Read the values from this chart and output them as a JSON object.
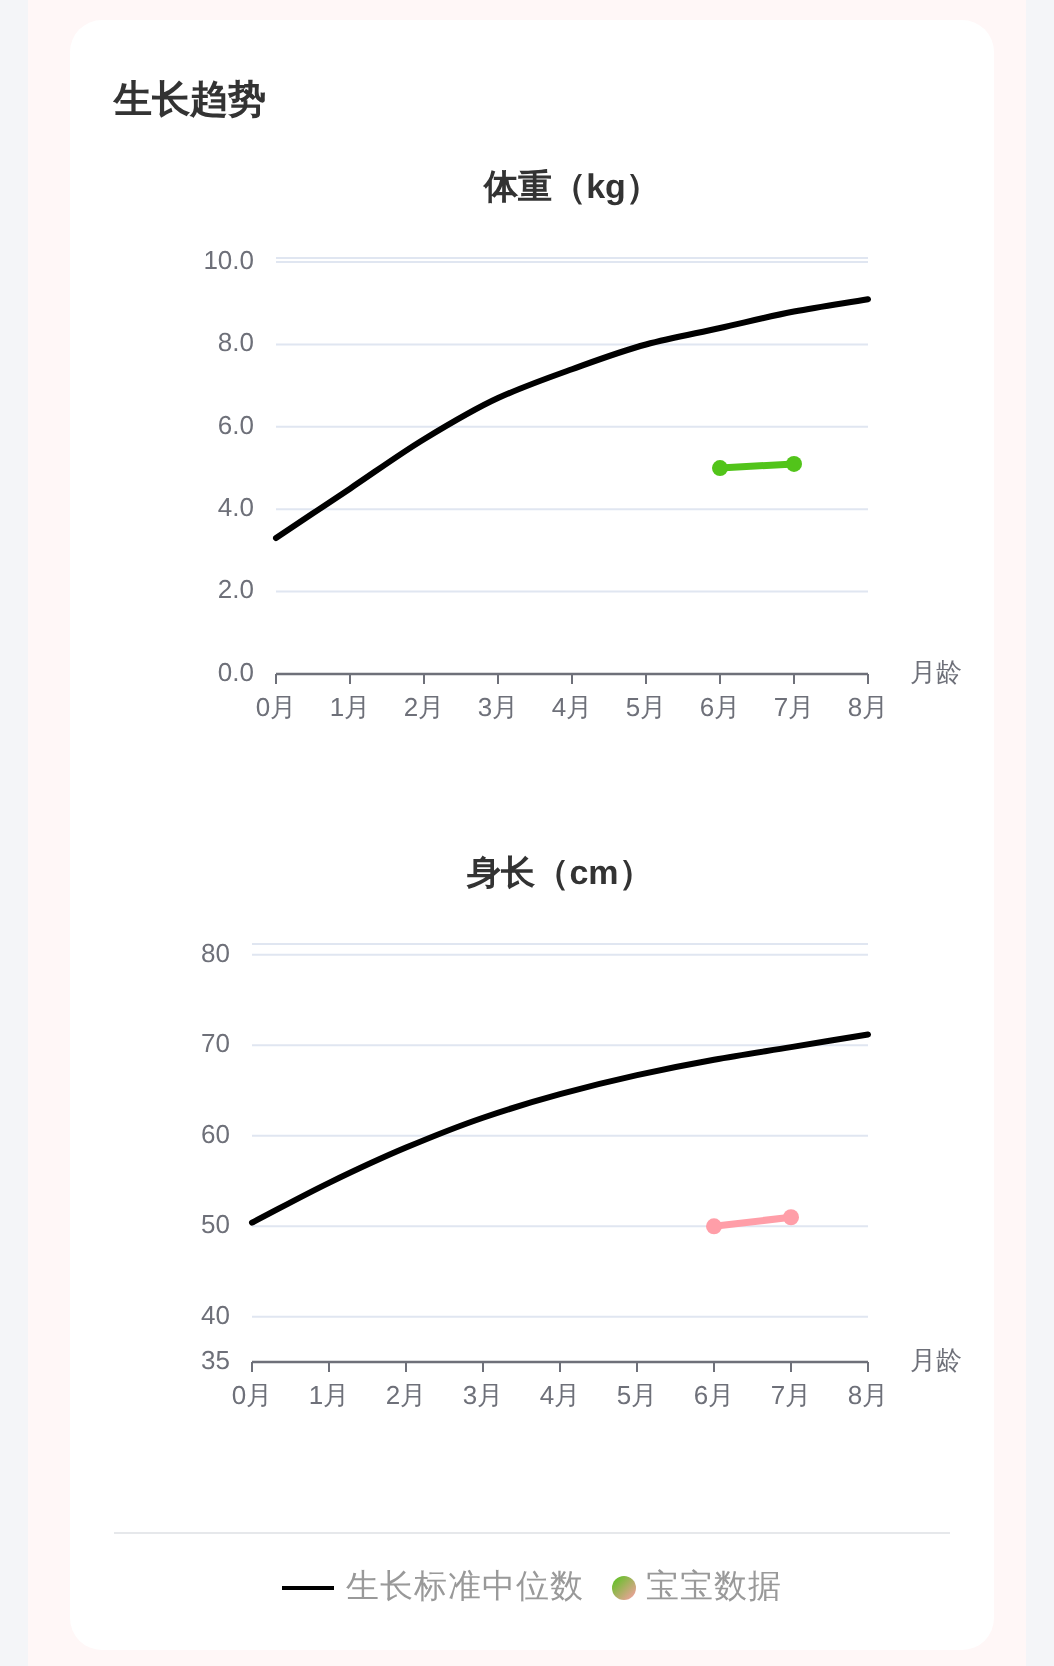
{
  "chart_data": [
    {
      "type": "line",
      "title": "生长趋势",
      "subtitle": "体重（kg）",
      "categories": [
        "0月",
        "1月",
        "2月",
        "3月",
        "4月",
        "5月",
        "6月",
        "7月",
        "8月"
      ],
      "xlabel": "月龄",
      "series": [
        {
          "color": "#000000",
          "marker": "none",
          "values": [
            3.3,
            4.5,
            5.7,
            6.7,
            7.4,
            8.0,
            8.4,
            8.8,
            9.1
          ]
        },
        {
          "color": "#52c41a",
          "marker": "circle",
          "values": [
            null,
            null,
            null,
            null,
            null,
            null,
            5.0,
            5.1,
            null
          ]
        }
      ],
      "ylim": [
        0,
        10.1
      ],
      "yticks": [
        {
          "value": 0,
          "label": "0.0"
        },
        {
          "value": 2,
          "label": "2.0"
        },
        {
          "value": 4,
          "label": "4.0"
        },
        {
          "value": 6,
          "label": "6.0"
        },
        {
          "value": 8,
          "label": "8.0"
        },
        {
          "value": 10,
          "label": "10.0"
        },
        {
          "value": 10.1,
          "label": null
        }
      ],
      "grid": "y"
    },
    {
      "type": "line",
      "title": "身长（cm）",
      "categories": [
        "0月",
        "1月",
        "2月",
        "3月",
        "4月",
        "5月",
        "6月",
        "7月",
        "8月"
      ],
      "xlabel": "月龄",
      "series": [
        {
          "name": "生长标准中位数",
          "color": "#000000",
          "marker": "none",
          "values": [
            50.4,
            54.8,
            58.7,
            62.0,
            64.6,
            66.7,
            68.4,
            69.8,
            71.2
          ]
        },
        {
          "name": "宝宝数据",
          "color": "#ff9ea8",
          "marker": "circle",
          "values": [
            null,
            null,
            null,
            null,
            null,
            null,
            50,
            51,
            null
          ]
        }
      ],
      "ylim": [
        35,
        81.2
      ],
      "yticks": [
        35,
        40,
        50,
        60,
        70,
        80,
        {
          "value": 81.2,
          "label": null
        }
      ],
      "grid": "y",
      "legend": "bottom"
    }
  ]
}
